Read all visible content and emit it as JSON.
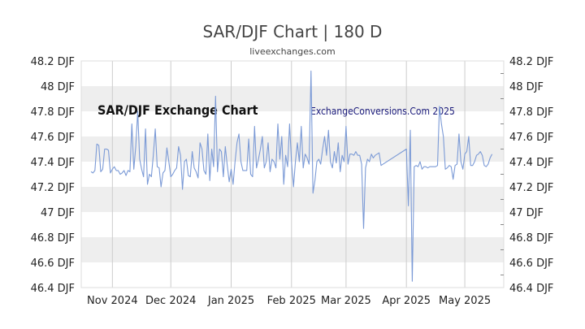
{
  "header": {
    "title": "SAR/DJF Chart | 180 D",
    "subtitle": "liveexchanges.com"
  },
  "watermarks": {
    "left": "SAR/DJF Exchange Chart",
    "right": "ExchangeConversions.Com 2025"
  },
  "colors": {
    "line": "#7b9ad6",
    "band": "#eeeeee",
    "grid": "#cccccc",
    "axis_text": "#222222"
  },
  "chart_data": {
    "type": "line",
    "title": "SAR/DJF Chart | 180 D",
    "xlabel": "",
    "ylabel": "",
    "ylim": [
      46.4,
      48.2
    ],
    "y_ticks": [
      {
        "value": 48.2,
        "label": "48.2 DJF"
      },
      {
        "value": 48.0,
        "label": "48 DJF"
      },
      {
        "value": 47.8,
        "label": "47.8 DJF"
      },
      {
        "value": 47.6,
        "label": "47.6 DJF"
      },
      {
        "value": 47.4,
        "label": "47.4 DJF"
      },
      {
        "value": 47.2,
        "label": "47.2 DJF"
      },
      {
        "value": 47.0,
        "label": "47 DJF"
      },
      {
        "value": 46.8,
        "label": "46.8 DJF"
      },
      {
        "value": 46.6,
        "label": "46.6 DJF"
      },
      {
        "value": 46.4,
        "label": "46.4 DJF"
      }
    ],
    "x_range": [
      "2024-10-16",
      "2025-05-21"
    ],
    "x_ticks": [
      {
        "date": "2024-11-01",
        "label": "Nov 2024"
      },
      {
        "date": "2024-12-01",
        "label": "Dec 2024"
      },
      {
        "date": "2025-01-01",
        "label": "Jan 2025"
      },
      {
        "date": "2025-02-01",
        "label": "Feb 2025"
      },
      {
        "date": "2025-03-01",
        "label": "Mar 2025"
      },
      {
        "date": "2025-04-01",
        "label": "Apr 2025"
      },
      {
        "date": "2025-05-01",
        "label": "May 2025"
      }
    ],
    "grid": true,
    "legend": "none",
    "series": [
      {
        "x": [
          "2024-10-21",
          "2024-10-22",
          "2024-10-23",
          "2024-10-24",
          "2024-10-25",
          "2024-10-26",
          "2024-10-27",
          "2024-10-28",
          "2024-10-29",
          "2024-10-30",
          "2024-10-31",
          "2024-11-01",
          "2024-11-02",
          "2024-11-03",
          "2024-11-04",
          "2024-11-05",
          "2024-11-06",
          "2024-11-07",
          "2024-11-08",
          "2024-11-09",
          "2024-11-10",
          "2024-11-11",
          "2024-11-12",
          "2024-11-13",
          "2024-11-14",
          "2024-11-15",
          "2024-11-16",
          "2024-11-17",
          "2024-11-18",
          "2024-11-19",
          "2024-11-20",
          "2024-11-21",
          "2024-11-22",
          "2024-11-23",
          "2024-11-24",
          "2024-11-25",
          "2024-11-26",
          "2024-11-27",
          "2024-11-28",
          "2024-11-29",
          "2024-11-30",
          "2024-12-01",
          "2024-12-02",
          "2024-12-03",
          "2024-12-04",
          "2024-12-05",
          "2024-12-06",
          "2024-12-07",
          "2024-12-08",
          "2024-12-09",
          "2024-12-10",
          "2024-12-11",
          "2024-12-12",
          "2024-12-13",
          "2024-12-14",
          "2024-12-15",
          "2024-12-16",
          "2024-12-17",
          "2024-12-18",
          "2024-12-19",
          "2024-12-20",
          "2024-12-21",
          "2024-12-22",
          "2024-12-23",
          "2024-12-24",
          "2024-12-25",
          "2024-12-26",
          "2024-12-27",
          "2024-12-28",
          "2024-12-29",
          "2024-12-30",
          "2024-12-31",
          "2025-01-01",
          "2025-01-02",
          "2025-01-03",
          "2025-01-04",
          "2025-01-05",
          "2025-01-06",
          "2025-01-07",
          "2025-01-08",
          "2025-01-09",
          "2025-01-10",
          "2025-01-11",
          "2025-01-12",
          "2025-01-13",
          "2025-01-14",
          "2025-01-15",
          "2025-01-16",
          "2025-01-17",
          "2025-01-18",
          "2025-01-19",
          "2025-01-20",
          "2025-01-21",
          "2025-01-22",
          "2025-01-23",
          "2025-01-24",
          "2025-01-25",
          "2025-01-26",
          "2025-01-27",
          "2025-01-28",
          "2025-01-29",
          "2025-01-30",
          "2025-01-31",
          "2025-02-01",
          "2025-02-02",
          "2025-02-03",
          "2025-02-04",
          "2025-02-05",
          "2025-02-06",
          "2025-02-07",
          "2025-02-08",
          "2025-02-09",
          "2025-02-10",
          "2025-02-11",
          "2025-02-12",
          "2025-02-13",
          "2025-02-14",
          "2025-02-15",
          "2025-02-16",
          "2025-02-17",
          "2025-02-18",
          "2025-02-19",
          "2025-02-20",
          "2025-02-21",
          "2025-02-22",
          "2025-02-23",
          "2025-02-24",
          "2025-02-25",
          "2025-02-26",
          "2025-02-27",
          "2025-02-28",
          "2025-03-01",
          "2025-03-02",
          "2025-03-03",
          "2025-03-04",
          "2025-03-05",
          "2025-03-06",
          "2025-03-07",
          "2025-03-08",
          "2025-03-09",
          "2025-03-10",
          "2025-03-11",
          "2025-03-12",
          "2025-03-13",
          "2025-03-14",
          "2025-03-15",
          "2025-03-16",
          "2025-03-17",
          "2025-03-18",
          "2025-03-19",
          "2025-03-20",
          "2025-04-01",
          "2025-04-02",
          "2025-04-03",
          "2025-04-04",
          "2025-04-05",
          "2025-04-06",
          "2025-04-07",
          "2025-04-08",
          "2025-04-09",
          "2025-04-10",
          "2025-04-11",
          "2025-04-12",
          "2025-04-13",
          "2025-04-14",
          "2025-04-15",
          "2025-04-16",
          "2025-04-17",
          "2025-04-18",
          "2025-04-19",
          "2025-04-20",
          "2025-04-21",
          "2025-04-22",
          "2025-04-23",
          "2025-04-24",
          "2025-04-25",
          "2025-04-26",
          "2025-04-27",
          "2025-04-28",
          "2025-04-29",
          "2025-04-30",
          "2025-05-01",
          "2025-05-02",
          "2025-05-03",
          "2025-05-04",
          "2025-05-05",
          "2025-05-06",
          "2025-05-07",
          "2025-05-08",
          "2025-05-09",
          "2025-05-10",
          "2025-05-11",
          "2025-05-12",
          "2025-05-13",
          "2025-05-14",
          "2025-05-15"
        ],
        "y": [
          47.32,
          47.31,
          47.33,
          47.54,
          47.53,
          47.32,
          47.34,
          47.5,
          47.5,
          47.49,
          47.31,
          47.34,
          47.36,
          47.33,
          47.33,
          47.3,
          47.31,
          47.33,
          47.29,
          47.33,
          47.32,
          47.7,
          47.34,
          47.52,
          47.8,
          47.42,
          47.34,
          47.28,
          47.66,
          47.22,
          47.3,
          47.28,
          47.45,
          47.66,
          47.36,
          47.35,
          47.2,
          47.31,
          47.33,
          47.51,
          47.4,
          47.28,
          47.3,
          47.33,
          47.35,
          47.52,
          47.45,
          47.18,
          47.4,
          47.42,
          47.29,
          47.28,
          47.48,
          47.35,
          47.32,
          47.27,
          47.55,
          47.5,
          47.33,
          47.3,
          47.62,
          47.25,
          47.5,
          47.36,
          47.92,
          47.32,
          47.5,
          47.48,
          47.28,
          47.52,
          47.37,
          47.24,
          47.34,
          47.22,
          47.4,
          47.55,
          47.62,
          47.4,
          47.33,
          47.33,
          47.33,
          47.58,
          47.3,
          47.28,
          47.68,
          47.35,
          47.42,
          47.5,
          47.6,
          47.35,
          47.4,
          47.55,
          47.32,
          47.42,
          47.4,
          47.35,
          47.7,
          47.42,
          47.6,
          47.22,
          47.45,
          47.36,
          47.7,
          47.4,
          47.2,
          47.4,
          47.55,
          47.4,
          47.68,
          47.35,
          47.46,
          47.43,
          47.38,
          48.12,
          47.15,
          47.25,
          47.4,
          47.42,
          47.38,
          47.5,
          47.6,
          47.45,
          47.65,
          47.4,
          47.35,
          47.48,
          47.39,
          47.55,
          47.32,
          47.45,
          47.4,
          47.68,
          47.38,
          47.46,
          47.46,
          47.45,
          47.48,
          47.45,
          47.45,
          47.38,
          46.87,
          47.35,
          47.42,
          47.4,
          47.46,
          47.43,
          47.45,
          47.46,
          47.47,
          47.37,
          47.38,
          47.5,
          47.05,
          47.65,
          46.45,
          47.36,
          47.37,
          47.36,
          47.4,
          47.34,
          47.36,
          47.36,
          47.35,
          47.36,
          47.36,
          47.36,
          47.36,
          47.37,
          47.84,
          47.7,
          47.6,
          47.34,
          47.35,
          47.37,
          47.36,
          47.26,
          47.37,
          47.38,
          47.62,
          47.4,
          47.34,
          47.46,
          47.48,
          47.6,
          47.37,
          47.37,
          47.4,
          47.45,
          47.46,
          47.48,
          47.45,
          47.37,
          47.36,
          47.38,
          47.43,
          47.46
        ]
      }
    ]
  }
}
